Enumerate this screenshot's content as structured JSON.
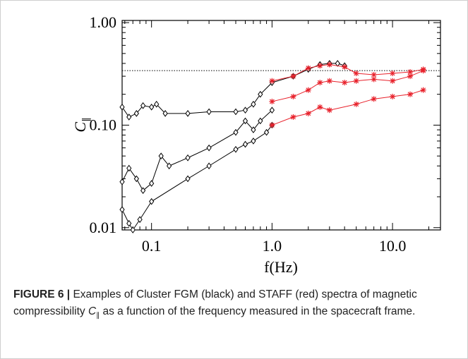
{
  "chart_data": {
    "type": "line",
    "xlabel": "f(Hz)",
    "ylabel": {
      "symbol": "C",
      "subscript": "∥"
    },
    "xscale": "log",
    "yscale": "log",
    "xlim": [
      0.057,
      25
    ],
    "ylim": [
      0.0095,
      1.05
    ],
    "xticks": [
      0.1,
      {
        "value": 1,
        "label": "1.0"
      },
      {
        "value": 10,
        "label": "10.0"
      }
    ],
    "yticks": [
      {
        "value": 1,
        "label": "1.00"
      },
      {
        "value": 0.1,
        "label": "0.10"
      },
      0.01
    ],
    "xticks_minor": [
      0.06,
      0.07,
      0.08,
      0.09,
      0.2,
      0.3,
      0.4,
      0.5,
      0.6,
      0.7,
      0.8,
      0.9,
      2,
      3,
      4,
      5,
      6,
      7,
      8,
      9,
      20
    ],
    "yticks_minor": [
      0.02,
      0.03,
      0.04,
      0.05,
      0.06,
      0.07,
      0.08,
      0.09,
      0.2,
      0.3,
      0.4,
      0.5,
      0.6,
      0.7,
      0.8,
      0.9
    ],
    "hline": 0.34,
    "series": [
      {
        "name": "FGM",
        "color": "#000000",
        "marker": "diamond",
        "x": [
          0.057,
          0.065,
          0.075,
          0.085,
          0.1,
          0.11,
          0.13,
          0.2,
          0.3,
          0.5,
          0.6,
          0.7,
          0.8,
          1.0,
          1.5,
          2.0,
          2.5,
          3.0,
          3.5,
          4.0
        ],
        "values": [
          0.15,
          0.12,
          0.13,
          0.155,
          0.15,
          0.16,
          0.13,
          0.13,
          0.135,
          0.135,
          0.14,
          0.16,
          0.2,
          0.26,
          0.3,
          0.35,
          0.39,
          0.4,
          0.4,
          0.38
        ]
      },
      {
        "name": "FGM",
        "color": "#000000",
        "marker": "diamond",
        "x": [
          0.057,
          0.065,
          0.075,
          0.085,
          0.1,
          0.12,
          0.14,
          0.2,
          0.3,
          0.5,
          0.6,
          0.7,
          0.8,
          1.0
        ],
        "values": [
          0.028,
          0.038,
          0.03,
          0.023,
          0.027,
          0.05,
          0.04,
          0.048,
          0.06,
          0.085,
          0.11,
          0.09,
          0.11,
          0.14
        ]
      },
      {
        "name": "FGM",
        "color": "#000000",
        "marker": "diamond",
        "x": [
          0.057,
          0.065,
          0.07,
          0.08,
          0.1,
          0.2,
          0.3,
          0.5,
          0.6,
          0.7,
          0.9,
          1.0
        ],
        "values": [
          0.015,
          0.011,
          0.0095,
          0.012,
          0.018,
          0.03,
          0.04,
          0.058,
          0.065,
          0.07,
          0.085,
          0.1
        ]
      },
      {
        "name": "STAFF",
        "color": "#e8202a",
        "marker": "asterisk",
        "x": [
          1.0,
          1.5,
          2.0,
          2.5,
          3.0,
          4.0,
          5.0,
          7,
          10,
          14,
          18
        ],
        "values": [
          0.27,
          0.3,
          0.36,
          0.38,
          0.39,
          0.37,
          0.32,
          0.31,
          0.32,
          0.33,
          0.35
        ]
      },
      {
        "name": "STAFF",
        "color": "#e8202a",
        "marker": "asterisk",
        "x": [
          1.0,
          1.5,
          2.0,
          2.5,
          3.0,
          4.0,
          5.0,
          7,
          10,
          14,
          18
        ],
        "values": [
          0.17,
          0.19,
          0.22,
          0.26,
          0.27,
          0.26,
          0.27,
          0.28,
          0.27,
          0.3,
          0.34
        ]
      },
      {
        "name": "STAFF",
        "color": "#e8202a",
        "marker": "asterisk",
        "x": [
          1.0,
          1.5,
          2.0,
          2.5,
          3.0,
          5,
          7,
          10,
          14,
          18
        ],
        "values": [
          0.1,
          0.12,
          0.13,
          0.15,
          0.14,
          0.16,
          0.18,
          0.19,
          0.2,
          0.22
        ]
      }
    ]
  },
  "caption": {
    "label": "FIGURE 6 |",
    "text_before": "Examples of Cluster FGM (black) and STAFF (red) spectra of magnetic compressibility",
    "symbol": "C",
    "subscript": "∥",
    "text_after": "as a function of the frequency measured in the spacecraft frame."
  }
}
